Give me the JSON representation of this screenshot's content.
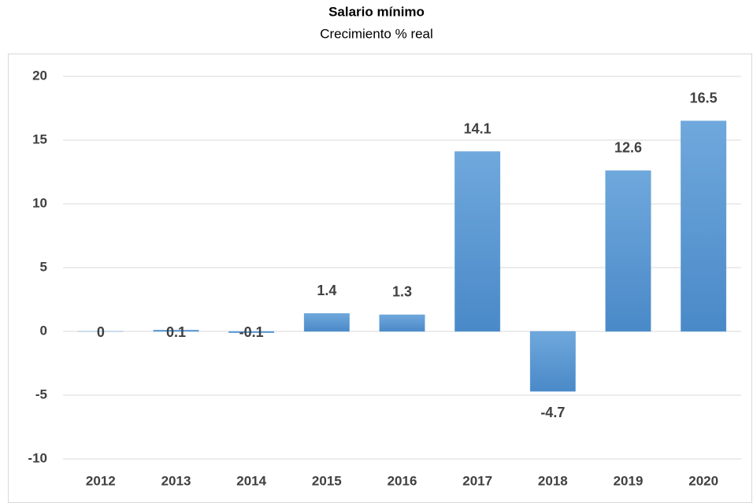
{
  "chart_data": {
    "type": "bar",
    "title": "Salario mínimo",
    "subtitle": "Crecimiento % real",
    "categories": [
      "2012",
      "2013",
      "2014",
      "2015",
      "2016",
      "2017",
      "2018",
      "2019",
      "2020"
    ],
    "values": [
      0,
      0.1,
      -0.1,
      1.4,
      1.3,
      14.1,
      -4.7,
      12.6,
      16.5
    ],
    "color": "#5b9bd5",
    "ylim": [
      -10,
      20
    ],
    "yticks": [
      -10,
      -5,
      0,
      5,
      10,
      15,
      20
    ],
    "grid": true
  }
}
